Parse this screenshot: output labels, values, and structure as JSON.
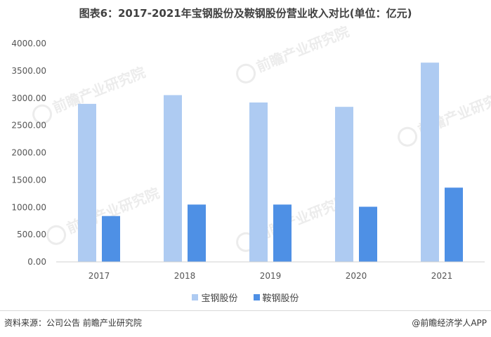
{
  "title": "图表6：2017-2021年宝钢股份及鞍钢股份营业收入对比(单位：亿元)",
  "watermark_text": "前瞻产业研究院",
  "chart_data": {
    "type": "bar",
    "categories": [
      "2017",
      "2018",
      "2019",
      "2020",
      "2021"
    ],
    "series": [
      {
        "name": "宝钢股份",
        "color": "#aecbf2",
        "values": [
          2895,
          3055,
          2920,
          2840,
          3650
        ]
      },
      {
        "name": "鞍钢股份",
        "color": "#4e90e5",
        "values": [
          840,
          1050,
          1050,
          1010,
          1360
        ]
      }
    ],
    "ylim": [
      0,
      4000
    ],
    "yticks": [
      "0.00",
      "500.00",
      "1000.00",
      "1500.00",
      "2000.00",
      "2500.00",
      "3000.00",
      "3500.00",
      "4000.00"
    ],
    "grid": false,
    "legend_position": "bottom"
  },
  "footer": {
    "source": "资料来源：公司公告 前瞻产业研究院",
    "credit": "@前瞻经济学人APP"
  }
}
